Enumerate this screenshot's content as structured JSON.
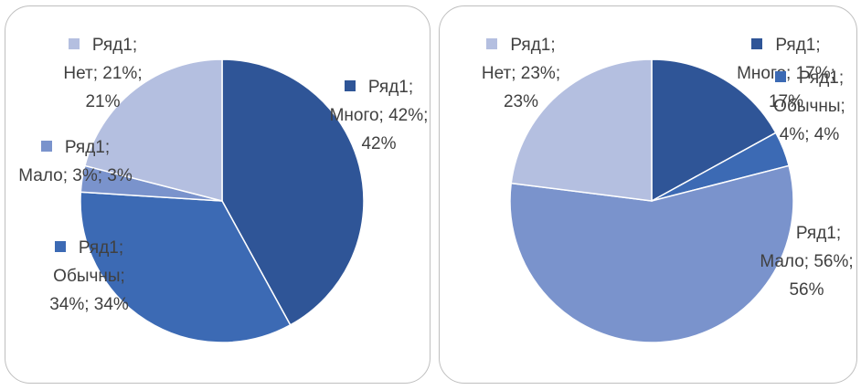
{
  "chart_data": [
    {
      "type": "pie",
      "series_name": "Ряд1",
      "categories": [
        "Много",
        "Обычны",
        "Мало",
        "Нет"
      ],
      "values": [
        42,
        34,
        3,
        21
      ],
      "value_labels": [
        "Ряд1; Много; 42%; 42%",
        "Ряд1; Обычны; 34%; 34%",
        "Ряд1; Мало; 3%; 3%",
        "Ряд1; Нет; 21%; 21%"
      ],
      "colors": [
        "#2f5597",
        "#3c6ab4",
        "#7a93cc",
        "#b4bfe0"
      ]
    },
    {
      "type": "pie",
      "series_name": "Ряд1",
      "categories": [
        "Много",
        "Обычны",
        "Мало",
        "Нет"
      ],
      "values": [
        17,
        4,
        56,
        23
      ],
      "value_labels": [
        "Ряд1; Много; 17%; 17%",
        "Ряд1; Обычны; 4%; 4%",
        "Ряд1; Мало; 56%; 56%",
        "Ряд1; Нет; 23%; 23%"
      ],
      "colors": [
        "#2f5597",
        "#3c6ab4",
        "#7a93cc",
        "#b4bfe0"
      ]
    }
  ]
}
